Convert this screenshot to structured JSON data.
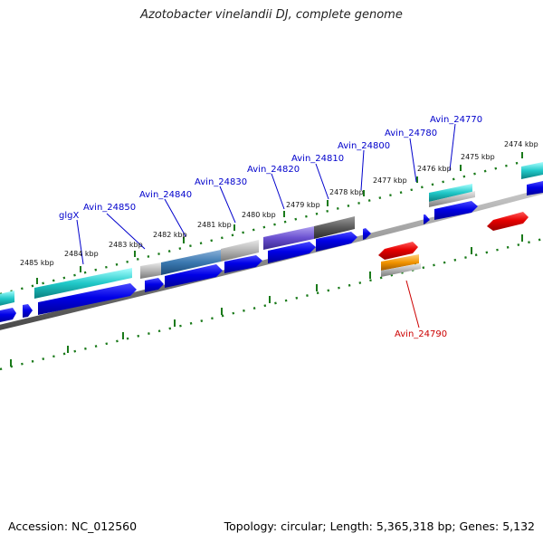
{
  "title": "Azotobacter vinelandii DJ, complete genome",
  "footer": {
    "accession": "Accession: NC_012560",
    "summary": "Topology: circular; Length: 5,365,318 bp; Genes: 5,132"
  },
  "kbp_labels": [
    "2485 kbp",
    "2484 kbp",
    "2483 kbp",
    "2482 kbp",
    "2481 kbp",
    "2480 kbp",
    "2479 kbp",
    "2478 kbp",
    "2477 kbp",
    "2476 kbp",
    "2475 kbp",
    "2474 kbp"
  ],
  "gene_labels": [
    {
      "id": "glgx",
      "text": "glgX",
      "color": "#0000cc"
    },
    {
      "id": "avin24850",
      "text": "Avin_24850",
      "color": "#0000cc"
    },
    {
      "id": "avin24840",
      "text": "Avin_24840",
      "color": "#0000cc"
    },
    {
      "id": "avin24830",
      "text": "Avin_24830",
      "color": "#0000cc"
    },
    {
      "id": "avin24820",
      "text": "Avin_24820",
      "color": "#0000cc"
    },
    {
      "id": "avin24810",
      "text": "Avin_24810",
      "color": "#0000cc"
    },
    {
      "id": "avin24800",
      "text": "Avin_24800",
      "color": "#0000cc"
    },
    {
      "id": "avin24780",
      "text": "Avin_24780",
      "color": "#0000cc"
    },
    {
      "id": "avin24770",
      "text": "Avin_24770",
      "color": "#0000cc"
    },
    {
      "id": "avin24790",
      "text": "Avin_24790",
      "color": "#cc0000"
    }
  ],
  "colors": {
    "backbone": "#7f7f7f",
    "forward_cds": "#0000e6",
    "reverse_cds": "#e60000",
    "tick": "#1a7a1a",
    "cyan_feature": "#20c8c8",
    "orange_feature": "#f29400"
  }
}
